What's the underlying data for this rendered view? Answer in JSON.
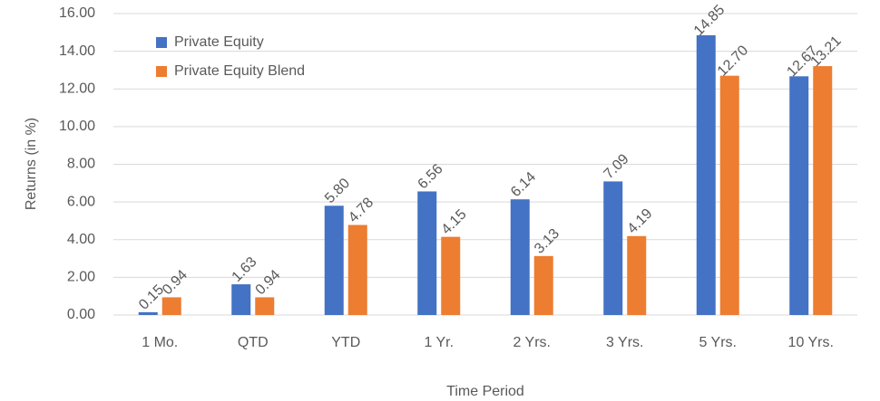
{
  "chart_data": {
    "type": "bar",
    "x_label": "Time Period",
    "y_label": "Returns (in %)",
    "categories": [
      "1 Mo.",
      "QTD",
      "YTD",
      "1 Yr.",
      "2 Yrs.",
      "3 Yrs.",
      "5 Yrs.",
      "10 Yrs."
    ],
    "series": [
      {
        "name": "Private Equity",
        "color": "#4472c4",
        "values": [
          0.15,
          1.63,
          5.8,
          6.56,
          6.14,
          7.09,
          14.85,
          12.67
        ],
        "value_labels": [
          "0.15",
          "1.63",
          "5.80",
          "6.56",
          "6.14",
          "7.09",
          "14.85",
          "12.67"
        ]
      },
      {
        "name": "Private Equity Blend",
        "color": "#ed7d31",
        "values": [
          0.94,
          0.94,
          4.78,
          4.15,
          3.13,
          4.19,
          12.7,
          13.21
        ],
        "value_labels": [
          "0.94",
          "0.94",
          "4.78",
          "4.15",
          "3.13",
          "4.19",
          "12.70",
          "13.21"
        ]
      }
    ],
    "ylim": [
      0,
      16
    ],
    "yticks": [
      {
        "value": 0,
        "label": "0.00"
      },
      {
        "value": 2,
        "label": "2.00"
      },
      {
        "value": 4,
        "label": "4.00"
      },
      {
        "value": 6,
        "label": "6.00"
      },
      {
        "value": 8,
        "label": "8.00"
      },
      {
        "value": 10,
        "label": "10.00"
      },
      {
        "value": 12,
        "label": "12.00"
      },
      {
        "value": 14,
        "label": "14.00"
      },
      {
        "value": 16,
        "label": "16.00"
      }
    ],
    "grid": true,
    "legend": "top-left"
  }
}
